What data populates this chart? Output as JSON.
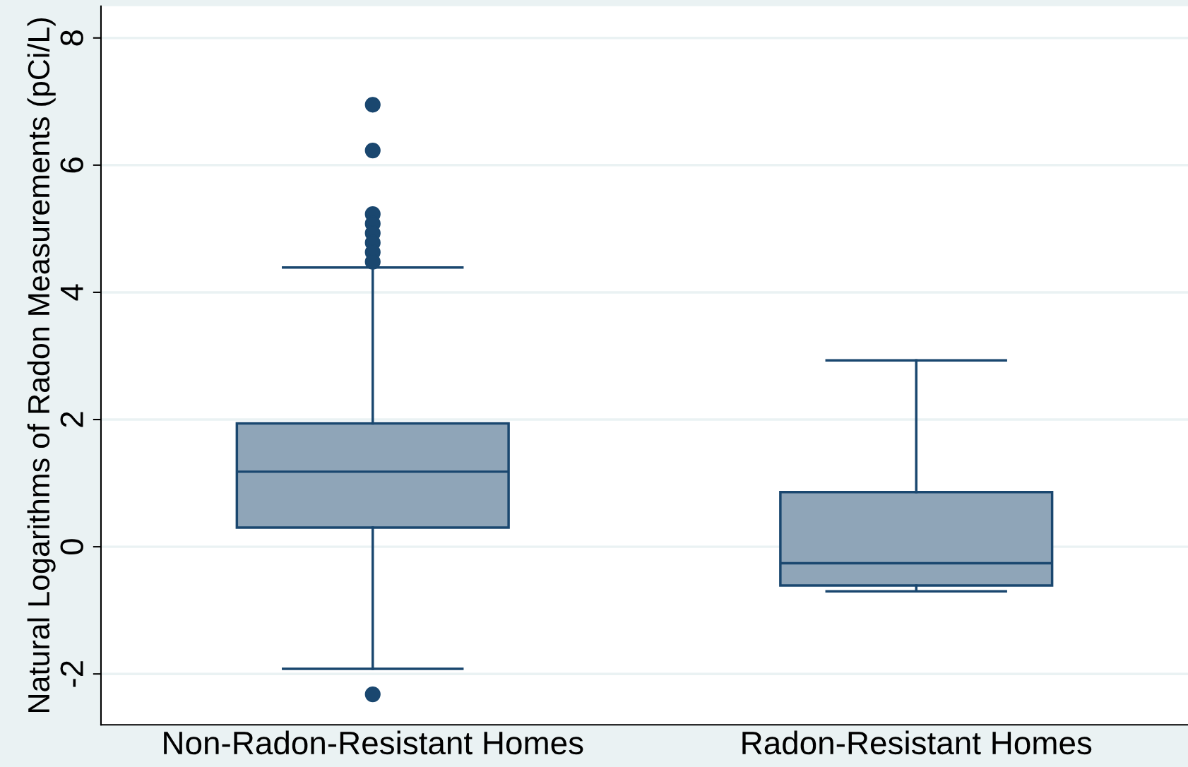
{
  "chart_data": {
    "type": "box",
    "ylabel": "Natural Logarithms of Radon Measurements (pCi/L)",
    "categories": [
      "Non-Radon-Resistant Homes",
      "Radon-Resistant Homes"
    ],
    "boxes": [
      {
        "low": -1.92,
        "q1": 0.3,
        "median": 1.18,
        "q3": 1.94,
        "high": 4.39,
        "outliers": [
          6.95,
          6.23,
          5.23,
          5.08,
          4.93,
          4.78,
          4.63,
          4.48,
          -2.32
        ]
      },
      {
        "low": -0.7,
        "q1": -0.61,
        "median": -0.26,
        "q3": 0.86,
        "high": 2.93
      }
    ],
    "color": "#8fa5b8",
    "ylim": [
      -2.8,
      8.5
    ],
    "yticks": [
      -2,
      0,
      2,
      4,
      6,
      8
    ],
    "grid": "y",
    "legend": false
  }
}
